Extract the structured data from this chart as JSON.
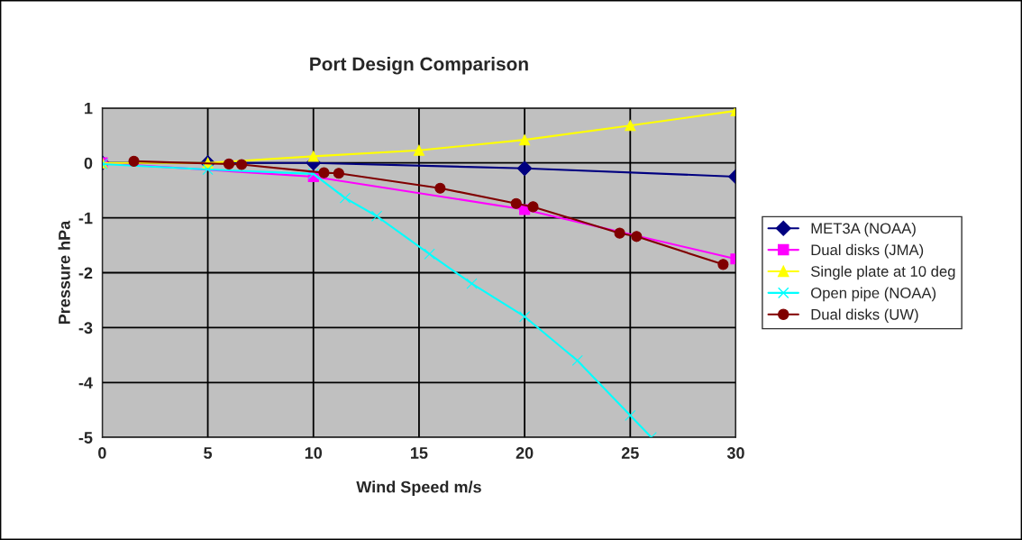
{
  "chart_data": {
    "type": "line",
    "title": "Port Design Comparison",
    "xlabel": "Wind Speed m/s",
    "ylabel": "Pressure hPa",
    "xlim": [
      0,
      30
    ],
    "xticks": [
      0,
      5,
      10,
      15,
      20,
      25,
      30
    ],
    "ylim": [
      -5,
      1
    ],
    "yticks": [
      -5,
      -4,
      -3,
      -2,
      -1,
      0,
      1
    ],
    "grid": true,
    "legend": "right",
    "series": [
      {
        "name": "MET3A (NOAA)",
        "color": "#000080",
        "marker": "diamond",
        "x": [
          0,
          5,
          10,
          20,
          30
        ],
        "values": [
          0,
          0,
          0,
          -0.1,
          -0.25
        ]
      },
      {
        "name": "Dual disks (JMA)",
        "color": "#ff00ff",
        "marker": "square",
        "x": [
          0,
          10,
          20,
          30
        ],
        "values": [
          0,
          -0.25,
          -0.85,
          -1.75
        ]
      },
      {
        "name": "Single plate at 10 deg",
        "color": "#ffff00",
        "marker": "triangle",
        "x": [
          0,
          5,
          10,
          15,
          20,
          25,
          30
        ],
        "values": [
          0,
          0,
          0.12,
          0.23,
          0.42,
          0.68,
          0.95
        ]
      },
      {
        "name": "Open pipe (NOAA)",
        "color": "#00ffff",
        "marker": "cross",
        "x": [
          0,
          5,
          10,
          11.5,
          13,
          15.5,
          17.5,
          20,
          22.5,
          25,
          26
        ],
        "values": [
          -0.02,
          -0.12,
          -0.2,
          -0.64,
          -0.97,
          -1.66,
          -2.2,
          -2.8,
          -3.6,
          -4.6,
          -5
        ]
      },
      {
        "name": "Dual disks (UW)",
        "color": "#800000",
        "marker": "circle",
        "x": [
          1.5,
          6,
          6.6,
          10.5,
          11.2,
          16,
          19.6,
          20.4,
          24.5,
          25.3,
          29.4
        ],
        "values": [
          0.03,
          -0.02,
          -0.03,
          -0.18,
          -0.19,
          -0.46,
          -0.74,
          -0.8,
          -1.28,
          -1.34,
          -1.85
        ]
      }
    ]
  }
}
